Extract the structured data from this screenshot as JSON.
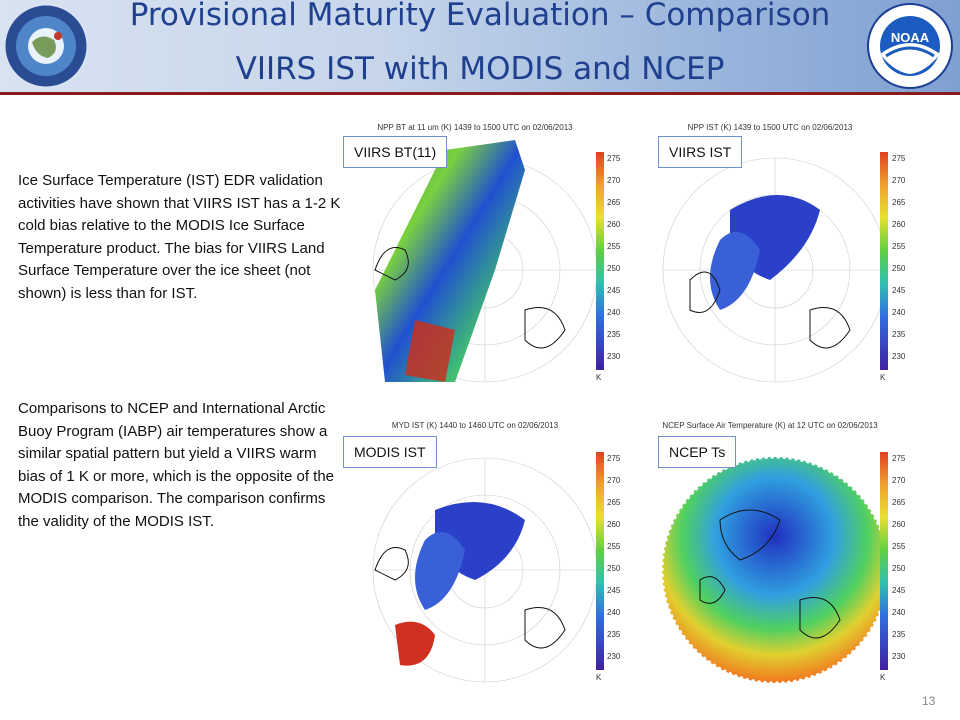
{
  "header": {
    "title_line1": "Provisional Maturity Evaluation – Comparison",
    "title_line2": "VIIRS IST with MODIS and NCEP",
    "logo_left": "NOAA NESDIS STAR",
    "logo_left_icon": "star-center-logo-icon",
    "logo_right": "NOAA",
    "logo_right_icon": "noaa-logo-icon"
  },
  "body": {
    "paragraph1": "Ice Surface Temperature (IST) EDR validation activities have shown that VIIRS IST has a 1-2 K cold bias relative to the MODIS Ice Surface Temperature product. The bias for VIIRS Land Surface Temperature over the ice sheet (not shown) is less than for IST.",
    "paragraph2": "Comparisons to NCEP and International Arctic Buoy Program (IABP) air temperatures show a similar spatial pattern but yield a VIIRS warm bias of 1 K or more, which is the opposite of the MODIS comparison. The comparison confirms the validity of the MODIS IST."
  },
  "panels": [
    {
      "label": "VIIRS BT(11)",
      "caption": "NPP BT at 11 um (K) 1439 to 1500 UTC on 02/06/2013"
    },
    {
      "label": "VIIRS IST",
      "caption": "NPP IST (K) 1439 to 1500 UTC on 02/06/2013"
    },
    {
      "label": "MODIS IST",
      "caption": "MYD IST (K) 1440 to 1460 UTC on 02/06/2013"
    },
    {
      "label": "NCEP Ts",
      "caption": "NCEP Surface Air Temperature (K) at 12 UTC on 02/06/2013"
    }
  ],
  "colorbar": {
    "ticks": [
      "275",
      "270",
      "265",
      "260",
      "255",
      "250",
      "245",
      "240",
      "235",
      "230"
    ],
    "unit": "K"
  },
  "page_number": "13"
}
